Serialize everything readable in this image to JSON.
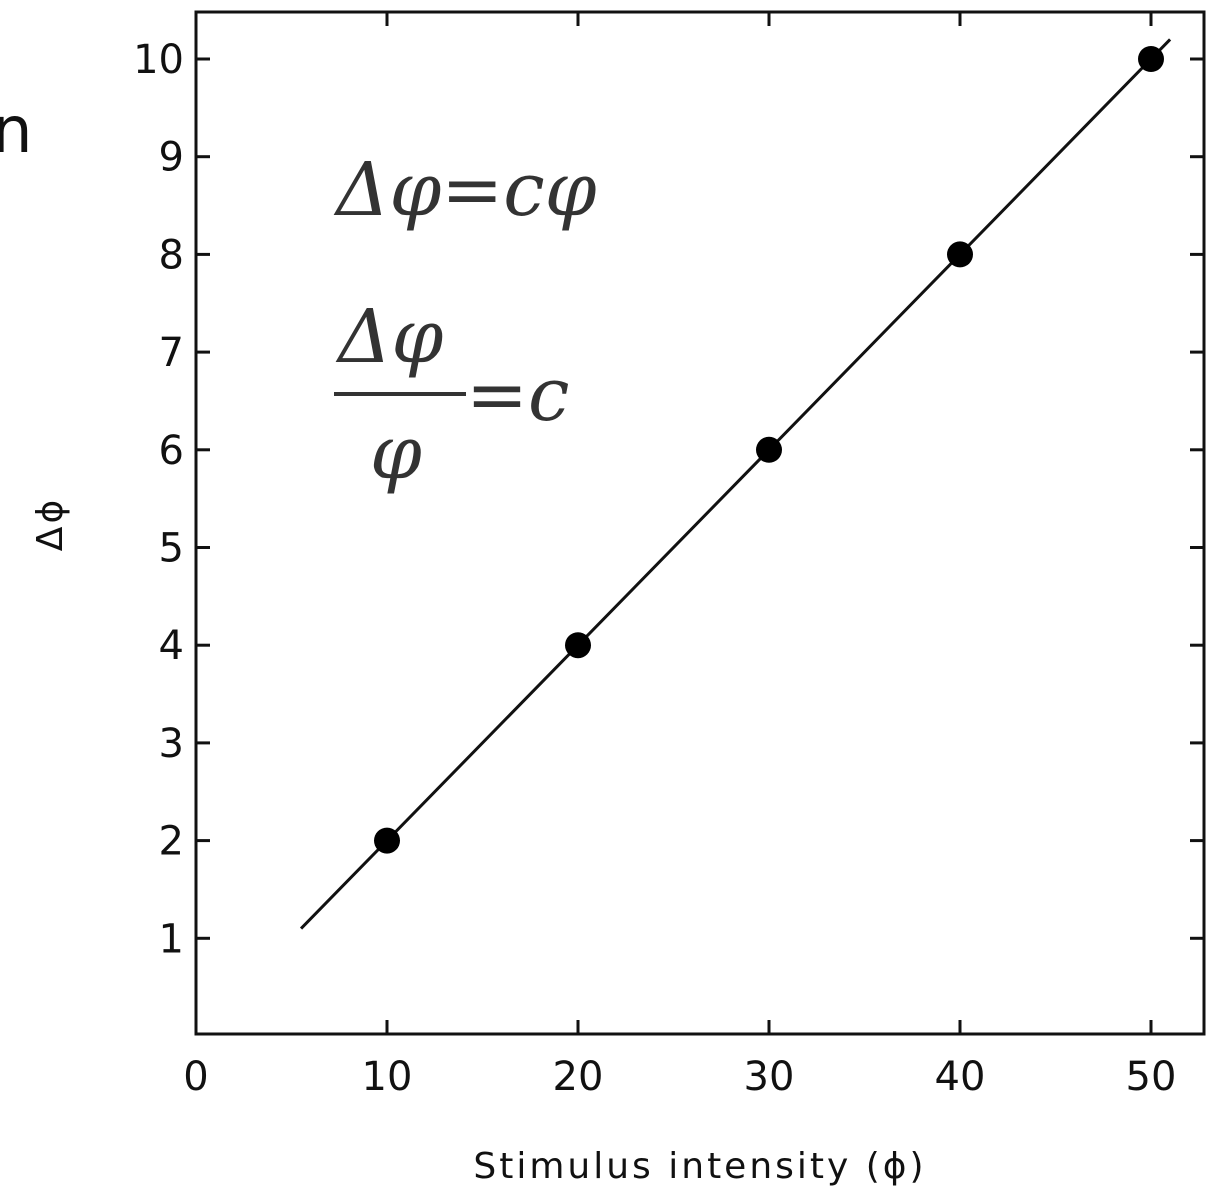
{
  "edge_fragment": "n",
  "annotations": {
    "formula_1": "Δφ=cφ",
    "formula_2_numerator": "Δφ",
    "formula_2_denominator": "φ",
    "formula_2_rhs": "=c"
  },
  "chart_data": {
    "type": "scatter",
    "title": "",
    "xlabel": "Stimulus intensity (ϕ)",
    "ylabel": "Δϕ",
    "xlim": [
      0,
      52
    ],
    "ylim": [
      0,
      10.5
    ],
    "x_ticks": [
      0,
      10,
      20,
      30,
      40,
      50
    ],
    "x_tick_labels": [
      "0",
      "10",
      "20",
      "30",
      "40",
      "50"
    ],
    "y_ticks": [
      1,
      2,
      3,
      4,
      5,
      6,
      7,
      8,
      9,
      10
    ],
    "y_tick_labels": [
      "1",
      "2",
      "3",
      "4",
      "5",
      "6",
      "7",
      "8",
      "9",
      "10"
    ],
    "grid": false,
    "series": [
      {
        "points": [
          {
            "x": 10,
            "y": 2
          },
          {
            "x": 20,
            "y": 4
          },
          {
            "x": 30,
            "y": 6
          },
          {
            "x": 40,
            "y": 8
          },
          {
            "x": 50,
            "y": 10
          }
        ]
      }
    ],
    "fit_line": {
      "x": [
        5.5,
        51
      ],
      "y": [
        1.1,
        10.2
      ]
    }
  }
}
